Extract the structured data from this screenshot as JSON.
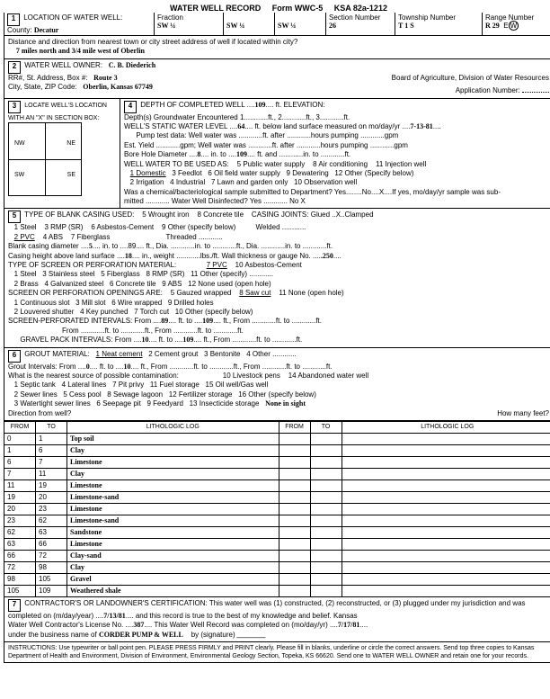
{
  "header": {
    "title": "WATER WELL RECORD",
    "formNo": "Form WWC-5",
    "ksa": "KSA 82a-1212"
  },
  "loc": {
    "label": "LOCATION OF WATER WELL:",
    "countyLabel": "County:",
    "county": "Decatur",
    "fractionLabel": "Fraction",
    "frac1": "SW ¼",
    "frac2": "SW ¼",
    "frac3": "SW ¼",
    "sectionLabel": "Section Number",
    "section": "26",
    "townshipLabel": "Township Number",
    "township": "T   1   S",
    "rangeLabel": "Range Number",
    "range": "R 29",
    "distLabel": "Distance and direction from nearest town or city street address of well if located within city?",
    "distance": "7 miles north and 3/4 mile west of Oberlin"
  },
  "owner": {
    "label": "WATER WELL OWNER:",
    "name": "C. B. Diederich",
    "addrLabel": "RR#, St. Address, Box #:",
    "addr": "Route 3",
    "cityLabel": "City, State, ZIP Code:",
    "city": "Oberlin, Kansas 67749",
    "board": "Board of Agriculture, Division of Water Resources",
    "appLabel": "Application Number:"
  },
  "locate3": {
    "label": "LOCATE WELL'S LOCATION WITH AN \"X\" IN SECTION BOX:"
  },
  "depth4": {
    "label": "DEPTH OF COMPLETED WELL",
    "depth": "109",
    "ftElev": "ft. ELEVATION:",
    "gw": "Depth(s) Groundwater Encountered  1............ft., 2............ft., 3............ft.",
    "staticLabel": "WELL'S STATIC WATER LEVEL",
    "static": "64",
    "staticSuffix": "ft. below land surface measured on mo/day/yr",
    "staticDate": "7-13-81",
    "pump": "Pump test data:  Well water was ............ft. after ............hours pumping ............gpm",
    "est": "Est. Yield ............gpm;  Well water was ............ft. after ............hours pumping ............gpm",
    "boreLabel": "Bore Hole Diameter",
    "bore1": "8",
    "boreTo": "in. to",
    "bore2": "109",
    "boreSuffix": "ft. and ............in. to ............ft.",
    "useLabel": "WELL WATER TO BE USED AS:",
    "use5": "5 Public water supply",
    "use8": "8 Air conditioning",
    "use11": "11 Injection well",
    "use1": "1 Domestic",
    "use3": "3 Feedlot",
    "use6": "6 Oil field water supply",
    "use9": "9 Dewatering",
    "use12": "12 Other (Specify below)",
    "use2": "2 Irrigation",
    "use4": "4 Industrial",
    "use7": "7 Lawn and garden only",
    "use10": "10 Observation well",
    "chemQ": "Was a chemical/bacteriological sample submitted to Department? Yes........No....X....If yes, mo/day/yr sample was sub-",
    "chemQ2": "mitted ............  Water Well Disinfected?  Yes ............  No   X"
  },
  "casing5": {
    "label": "TYPE OF BLANK CASING USED:",
    "c5": "5 Wrought iron",
    "c8": "8 Concrete tile",
    "cjLabel": "CASING JOINTS:",
    "cj": "Glued ..X..Clamped",
    "c1": "1 Steel",
    "c3": "3 RMP (SR)",
    "c6": "6 Asbestos-Cement",
    "c9": "9 Other (specify below)",
    "weld": "Welded ............",
    "c2": "2 PVC",
    "c4": "4 ABS",
    "c7": "7 Fiberglass",
    "thr": "Threaded ............",
    "diaLabel": "Blank casing diameter",
    "dia": "5",
    "diaSuffix": "in. to ....89.... ft., Dia. ............in. to ............ft., Dia. ............in. to ............ft.",
    "heightLabel": "Casing height above land surface",
    "height": "18",
    "heightSuffix": "in., weight ............lbs./ft. Wall thickness or gauge No.",
    "gauge": ".250",
    "screenLabel": "TYPE OF SCREEN OR PERFORATION MATERIAL:",
    "s7": "7 PVC",
    "s10": "10 Asbestos-Cement",
    "s1": "1 Steel",
    "s3": "3 Stainless steel",
    "s5": "5 Fiberglass",
    "s8": "8 RMP (SR)",
    "s11": "11 Other (specify) ............",
    "s2": "2 Brass",
    "s4": "4 Galvanized steel",
    "s6": "6 Concrete tile",
    "s9": "9 ABS",
    "s12": "12 None used (open hole)",
    "openLabel": "SCREEN OR PERFORATION OPENINGS ARE:",
    "o5": "5 Gauzed wrapped",
    "o8": "8 Saw cut",
    "o11": "11 None (open hole)",
    "o1": "1 Continuous slot",
    "o3": "3 Mill slot",
    "o6": "6 Wire wrapped",
    "o9": "9 Drilled holes",
    "o2": "2 Louvered shutter",
    "o4": "4 Key punched",
    "o7": "7 Torch cut",
    "o10": "10 Other (specify below)",
    "spLabel": "SCREEN-PERFORATED INTERVALS:    From",
    "sp1": "89",
    "spTo": "ft. to",
    "sp2": "109",
    "spSuffix": "ft., From ............ft. to ............ft.",
    "spLine2": "From ............ft. to ............ft., From ............ft. to ............ft.",
    "gpLabel": "GRAVEL PACK INTERVALS:    From",
    "gp1": "10",
    "gpTo": "ft. to",
    "gp2": "109",
    "gpSuffix": "ft., From ............ft. to ............ft."
  },
  "grout6": {
    "label": "GROUT MATERIAL:",
    "g1": "1 Neat cement",
    "g2": "2 Cement grout",
    "g3": "3 Bentonite",
    "g4": "4 Other ............",
    "giLabel": "Grout Intervals:  From",
    "gi1": "0",
    "giTo": "ft. to",
    "gi2": "10",
    "giSuffix": "ft., From ............ft. to ............ft., From ............ft. to ............ft.",
    "srcLabel": "What is the nearest source of possible contamination:",
    "n10": "10 Livestock pens",
    "n14": "14 Abandoned water well",
    "n1": "1 Septic tank",
    "n4": "4 Lateral lines",
    "n7": "7 Pit privy",
    "n11": "11 Fuel storage",
    "n15": "15 Oil well/Gas well",
    "n2": "2 Sewer lines",
    "n5": "5 Cess pool",
    "n8": "8 Sewage lagoon",
    "n12": "12 Fertilizer storage",
    "n16": "16 Other (specify below)",
    "n3": "3 Watertight sewer lines",
    "n6": "6 Seepage pit",
    "n9": "9 Feedyard",
    "n13": "13 Insecticide storage",
    "none": "None in sight",
    "dirLabel": "Direction from well?",
    "feetLabel": "How many feet?"
  },
  "litho": {
    "headers": [
      "FROM",
      "TO",
      "LITHOLOGIC LOG",
      "FROM",
      "TO",
      "LITHOLOGIC LOG"
    ],
    "rows": [
      [
        "0",
        "1",
        "Top soil",
        "",
        "",
        ""
      ],
      [
        "1",
        "6",
        "Clay",
        "",
        "",
        ""
      ],
      [
        "6",
        "7",
        "Limestone",
        "",
        "",
        ""
      ],
      [
        "7",
        "11",
        "Clay",
        "",
        "",
        ""
      ],
      [
        "11",
        "19",
        "Limestone",
        "",
        "",
        ""
      ],
      [
        "19",
        "20",
        "Limestone-sand",
        "",
        "",
        ""
      ],
      [
        "20",
        "23",
        "Limestone",
        "",
        "",
        ""
      ],
      [
        "23",
        "62",
        "Limestone-sand",
        "",
        "",
        ""
      ],
      [
        "62",
        "63",
        "Sandstone",
        "",
        "",
        ""
      ],
      [
        "63",
        "66",
        "Limestone",
        "",
        "",
        ""
      ],
      [
        "66",
        "72",
        "Clay-sand",
        "",
        "",
        ""
      ],
      [
        "72",
        "98",
        "Clay",
        "",
        "",
        ""
      ],
      [
        "98",
        "105",
        "Gravel",
        "",
        "",
        ""
      ],
      [
        "105",
        "109",
        "Weathered shale",
        "",
        "",
        ""
      ]
    ]
  },
  "cert7": {
    "label": "CONTRACTOR'S OR LANDOWNER'S CERTIFICATION: This water well was (1) constructed, (2) reconstructed, or (3) plugged under my jurisdiction and was",
    "line2a": "completed on (m/day/year)",
    "date1": "7/13/81",
    "line2b": "and this record is true to the best of my knowledge and belief. Kansas",
    "licLabel": "Water Well Contractor's License No.",
    "lic": "387",
    "compLabel": "This Water Well Record was completed on (mo/day/yr)",
    "date2": "7/17/81",
    "busLabel": "under the business name of",
    "bus": "CORDER PUMP & WELL",
    "sigLabel": "by (signature)"
  },
  "instr": "INSTRUCTIONS: Use typewriter or ball point pen. PLEASE PRESS FIRMLY and PRINT clearly. Please fill in blanks, underline or circle the correct answers. Send top three copies to Kansas Department of Health and Environment, Division of Environment, Environmental Geology Section, Topeka, KS 66620. Send one to WATER WELL OWNER and retain one for your records."
}
